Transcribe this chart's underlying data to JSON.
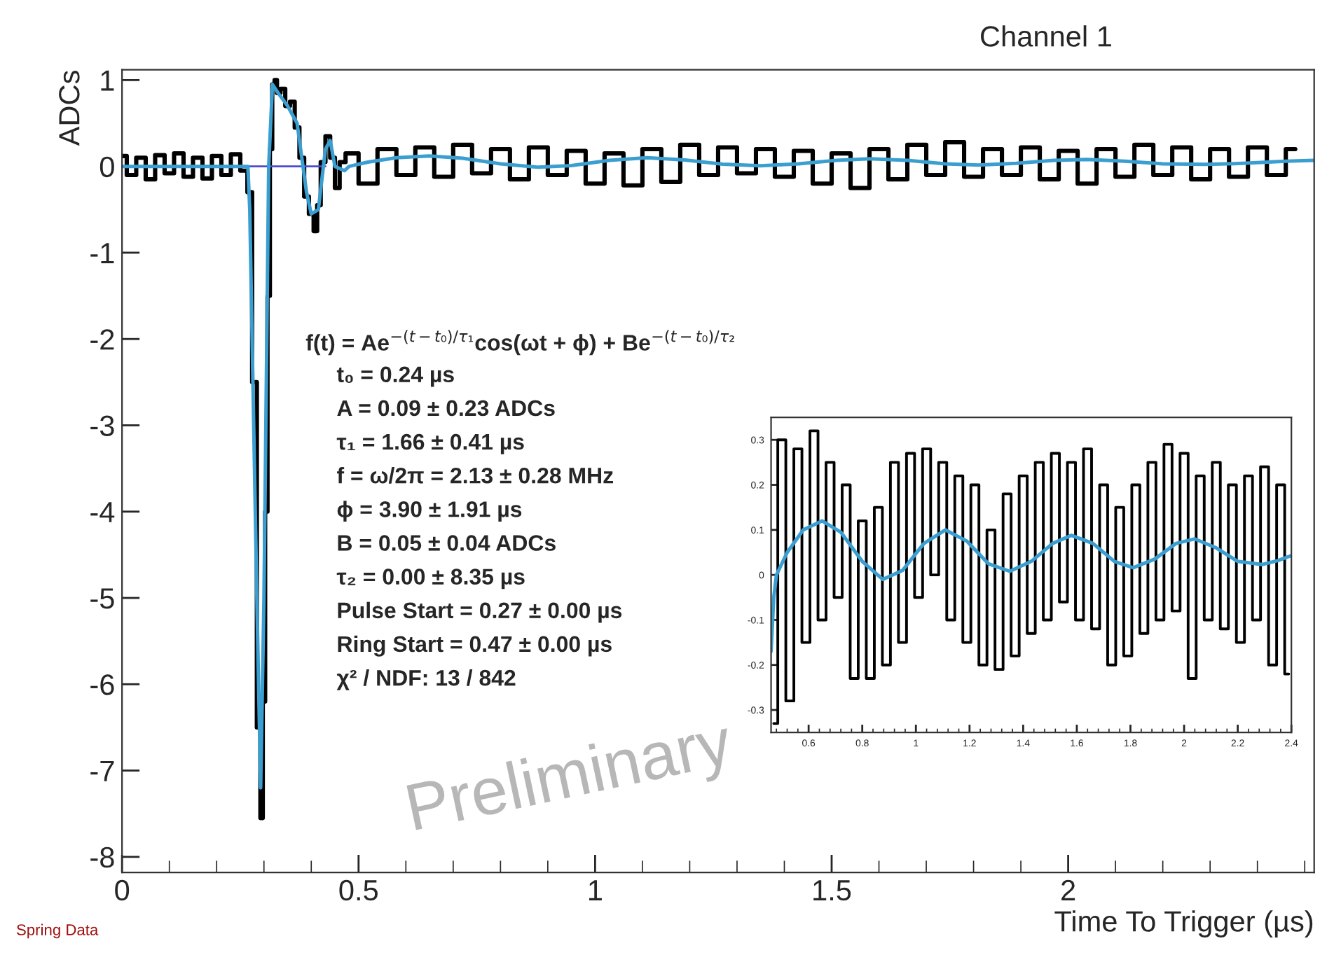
{
  "chart_data": [
    {
      "type": "step",
      "title": "Channel 1",
      "xlabel": "Time To Trigger (µs)",
      "ylabel": "ADCs",
      "xlim": [
        0,
        2.52
      ],
      "ylim": [
        -8.18,
        1.12
      ],
      "xticks": [
        0,
        0.5,
        1,
        1.5,
        2
      ],
      "yticks": [
        -8,
        -7,
        -6,
        -5,
        -4,
        -3,
        -2,
        -1,
        0,
        1
      ],
      "grid": false,
      "legend": false,
      "series": [
        {
          "color": "#000000",
          "x": [
            0,
            0.02,
            0.04,
            0.06,
            0.08,
            0.1,
            0.12,
            0.14,
            0.16,
            0.18,
            0.2,
            0.22,
            0.24,
            0.26,
            0.27,
            0.28,
            0.29,
            0.295,
            0.3,
            0.305,
            0.31,
            0.315,
            0.32,
            0.325,
            0.33,
            0.34,
            0.35,
            0.36,
            0.37,
            0.38,
            0.39,
            0.4,
            0.41,
            0.415,
            0.425,
            0.435,
            0.445,
            0.455,
            0.465,
            0.48,
            0.52,
            0.56,
            0.6,
            0.64,
            0.68,
            0.72,
            0.76,
            0.8,
            0.84,
            0.88,
            0.92,
            0.96,
            1.0,
            1.04,
            1.08,
            1.12,
            1.16,
            1.2,
            1.24,
            1.28,
            1.32,
            1.36,
            1.4,
            1.44,
            1.48,
            1.52,
            1.56,
            1.6,
            1.64,
            1.68,
            1.72,
            1.76,
            1.8,
            1.84,
            1.88,
            1.92,
            1.96,
            2.0,
            2.04,
            2.08,
            2.12,
            2.16,
            2.2,
            2.24,
            2.28,
            2.32,
            2.36,
            2.4,
            2.44,
            2.48
          ],
          "values": [
            0.12,
            -0.1,
            0.1,
            -0.15,
            0.13,
            -0.08,
            0.15,
            -0.12,
            0.1,
            -0.14,
            0.12,
            -0.1,
            0.14,
            -0.05,
            -0.3,
            -2.5,
            -6.5,
            -7.55,
            -6.2,
            -4,
            -1.5,
            0.2,
            0.95,
            1.0,
            0.85,
            0.9,
            0.7,
            0.75,
            0.45,
            0.1,
            -0.35,
            -0.55,
            -0.75,
            -0.45,
            0.05,
            0.35,
            0.1,
            -0.25,
            0.05,
            0.15,
            -0.2,
            0.2,
            -0.1,
            0.22,
            -0.12,
            0.25,
            -0.08,
            0.2,
            -0.15,
            0.22,
            -0.1,
            0.18,
            -0.2,
            0.15,
            -0.22,
            0.2,
            -0.18,
            0.25,
            -0.1,
            0.22,
            -0.08,
            0.2,
            -0.12,
            0.18,
            -0.2,
            0.15,
            -0.25,
            0.2,
            -0.15,
            0.25,
            -0.1,
            0.28,
            -0.12,
            0.2,
            -0.1,
            0.22,
            -0.15,
            0.18,
            -0.2,
            0.2,
            -0.12,
            0.25,
            -0.1,
            0.22,
            -0.15,
            0.2,
            -0.12,
            0.22,
            -0.1,
            0.2
          ]
        },
        {
          "type": "line",
          "color": "#4b4bd0",
          "x": [
            0.266,
            0.43
          ],
          "values": [
            0,
            0
          ]
        },
        {
          "type": "line",
          "color": "#3a9fd0",
          "x": [
            0,
            0.266,
            0.27,
            0.285,
            0.293,
            0.3,
            0.31,
            0.318,
            0.33,
            0.35,
            0.37,
            0.39,
            0.4,
            0.415,
            0.43,
            0.44,
            0.45,
            0.47,
            0.48,
            0.52,
            0.58,
            0.65,
            0.72,
            0.8,
            0.88,
            0.95,
            1.03,
            1.11,
            1.19,
            1.27,
            1.35,
            1.43,
            1.51,
            1.58,
            1.66,
            1.74,
            1.81,
            1.89,
            1.97,
            2.04,
            2.12,
            2.2,
            2.29,
            2.35,
            2.4,
            2.46,
            2.52
          ],
          "values": [
            0,
            0,
            -0.5,
            -5,
            -7.2,
            -5,
            0,
            0.95,
            0.85,
            0.7,
            0.5,
            -0.3,
            -0.55,
            -0.5,
            0.2,
            0.3,
            0,
            -0.05,
            0,
            0.05,
            0.1,
            0.12,
            0.095,
            0.03,
            -0.01,
            0.01,
            0.07,
            0.1,
            0.075,
            0.025,
            0.008,
            0.03,
            0.07,
            0.088,
            0.07,
            0.03,
            0.016,
            0.035,
            0.07,
            0.08,
            0.06,
            0.03,
            0.023,
            0.032,
            0.043,
            0.06,
            0.07
          ]
        }
      ],
      "annotations": [
        "f(t) = Ae$^{−(t−t₀)/τ₁}$cos(ωt + ϕ) + Be$^{−(t−t₀)/τ₂}$",
        "t₀ = 0.24 µs",
        "A = 0.09 ± 0.23 ADCs",
        "τ₁ = 1.66 ± 0.41 µs",
        "f = ω/2π = 2.13 ± 0.28 MHz",
        "ϕ = 3.90 ± 1.91 µs",
        "B = 0.05 ± 0.04 ADCs",
        "τ₂ = 0.00 ± 8.35 µs",
        "Pulse Start = 0.27 ± 0.00 µs",
        "Ring Start = 0.47 ± 0.00 µs",
        "χ² / NDF: 13 / 842",
        "Preliminary",
        "Spring Data"
      ]
    },
    {
      "type": "step",
      "xlim": [
        0.46,
        2.4
      ],
      "ylim": [
        -0.35,
        0.35
      ],
      "xticks": [
        0.6,
        0.8,
        1,
        1.2,
        1.4,
        1.6,
        1.8,
        2,
        2.2,
        2.4
      ],
      "yticks": [
        -0.3,
        -0.2,
        -0.1,
        0,
        0.1,
        0.2,
        0.3
      ],
      "grid": false,
      "legend": false,
      "series": [
        {
          "color": "#000000",
          "x": [
            0.47,
            0.5,
            0.53,
            0.56,
            0.59,
            0.62,
            0.65,
            0.68,
            0.71,
            0.74,
            0.77,
            0.8,
            0.83,
            0.86,
            0.89,
            0.92,
            0.95,
            0.98,
            1.01,
            1.04,
            1.07,
            1.1,
            1.13,
            1.16,
            1.19,
            1.22,
            1.25,
            1.28,
            1.31,
            1.34,
            1.37,
            1.4,
            1.43,
            1.46,
            1.49,
            1.52,
            1.55,
            1.58,
            1.61,
            1.64,
            1.67,
            1.7,
            1.73,
            1.76,
            1.79,
            1.82,
            1.85,
            1.88,
            1.91,
            1.94,
            1.97,
            2.0,
            2.03,
            2.06,
            2.09,
            2.12,
            2.15,
            2.18,
            2.21,
            2.24,
            2.27,
            2.3,
            2.33,
            2.36,
            2.39
          ],
          "values": [
            -0.33,
            0.3,
            -0.28,
            0.28,
            -0.15,
            0.32,
            -0.1,
            0.25,
            -0.05,
            0.2,
            -0.23,
            0.12,
            -0.23,
            0.15,
            -0.2,
            0.25,
            -0.15,
            0.27,
            -0.05,
            0.28,
            0.0,
            0.25,
            -0.1,
            0.22,
            -0.15,
            0.2,
            -0.2,
            0.1,
            -0.21,
            0.18,
            -0.18,
            0.22,
            -0.13,
            0.25,
            -0.1,
            0.27,
            -0.06,
            0.25,
            -0.1,
            0.28,
            -0.12,
            0.2,
            -0.2,
            0.15,
            -0.18,
            0.2,
            -0.13,
            0.25,
            -0.1,
            0.29,
            -0.08,
            0.27,
            -0.23,
            0.22,
            -0.1,
            0.25,
            -0.12,
            0.2,
            -0.15,
            0.22,
            -0.1,
            0.24,
            -0.2,
            0.2,
            -0.22
          ]
        },
        {
          "type": "line",
          "color": "#3a9fd0",
          "x": [
            0.46,
            0.47,
            0.48,
            0.52,
            0.58,
            0.65,
            0.72,
            0.8,
            0.877,
            0.95,
            1.03,
            1.11,
            1.19,
            1.27,
            1.35,
            1.43,
            1.51,
            1.58,
            1.66,
            1.74,
            1.81,
            1.89,
            1.97,
            2.04,
            2.12,
            2.2,
            2.29,
            2.35,
            2.4
          ],
          "values": [
            -0.17,
            -0.05,
            0,
            0.05,
            0.1,
            0.12,
            0.095,
            0.03,
            -0.01,
            0.01,
            0.07,
            0.1,
            0.075,
            0.025,
            0.008,
            0.03,
            0.07,
            0.088,
            0.07,
            0.03,
            0.016,
            0.035,
            0.07,
            0.08,
            0.06,
            0.03,
            0.023,
            0.032,
            0.043
          ]
        }
      ]
    }
  ]
}
